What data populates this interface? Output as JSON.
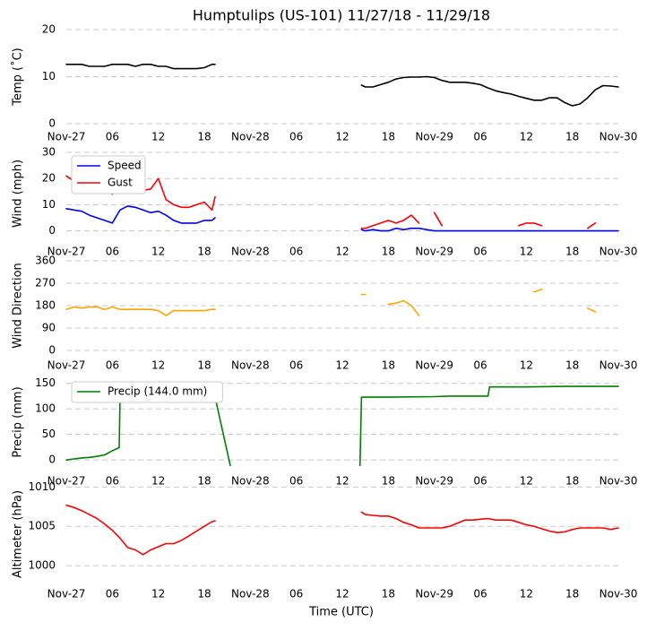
{
  "title": "Humptulips (US-101) 11/27/18 - 11/29/18",
  "xlabel": "Time (UTC)",
  "chart_data": [
    {
      "type": "line",
      "ylabel": "Temp (˚C)",
      "xlim": [
        0,
        72
      ],
      "xticks": [
        {
          "value": 0,
          "label": "Nov-27"
        },
        {
          "value": 6,
          "label": "06"
        },
        {
          "value": 12,
          "label": "12"
        },
        {
          "value": 18,
          "label": "18"
        },
        {
          "value": 24,
          "label": "Nov-28"
        },
        {
          "value": 30,
          "label": "06"
        },
        {
          "value": 36,
          "label": "12"
        },
        {
          "value": 42,
          "label": "18"
        },
        {
          "value": 48,
          "label": "Nov-29"
        },
        {
          "value": 54,
          "label": "06"
        },
        {
          "value": 60,
          "label": "12"
        },
        {
          "value": 66,
          "label": "18"
        },
        {
          "value": 72,
          "label": "Nov-30"
        }
      ],
      "ylim": [
        0,
        20
      ],
      "yticks": [
        0,
        10,
        20
      ],
      "grid": true,
      "x": [
        0,
        1,
        2,
        3,
        4,
        5,
        6,
        7,
        8,
        9,
        10,
        11,
        12,
        13,
        14,
        15,
        16,
        17,
        18,
        19,
        19.4,
        29,
        38.5,
        39,
        40,
        41,
        42,
        43,
        44,
        45,
        46,
        47,
        48,
        49,
        50,
        51,
        52,
        53,
        54,
        55,
        56,
        57,
        58,
        59,
        60,
        61,
        62,
        63,
        64,
        65,
        66,
        67,
        68,
        69,
        70,
        71,
        72
      ],
      "series": [
        {
          "color": "#000000",
          "values": [
            12.6,
            12.6,
            12.6,
            12.2,
            12.2,
            12.2,
            12.6,
            12.6,
            12.6,
            12.2,
            12.6,
            12.6,
            12.2,
            12.2,
            11.7,
            11.7,
            11.7,
            11.7,
            11.9,
            12.6,
            12.6,
            null,
            8.2,
            7.8,
            7.8,
            8.3,
            8.8,
            9.5,
            9.8,
            9.9,
            9.9,
            10,
            9.8,
            9.2,
            8.8,
            8.8,
            8.8,
            8.6,
            8.3,
            7.6,
            7,
            6.6,
            6.3,
            5.8,
            5.4,
            5,
            5,
            5.5,
            5.5,
            4.5,
            3.8,
            4.2,
            5.5,
            7.2,
            8.1,
            8,
            7.8
          ]
        }
      ]
    },
    {
      "type": "line",
      "ylabel": "Wind (mph)",
      "xlim": [
        0,
        72
      ],
      "xticks": [
        {
          "value": 0,
          "label": "Nov-27"
        },
        {
          "value": 6,
          "label": "06"
        },
        {
          "value": 12,
          "label": "12"
        },
        {
          "value": 18,
          "label": "18"
        },
        {
          "value": 24,
          "label": "Nov-28"
        },
        {
          "value": 30,
          "label": "06"
        },
        {
          "value": 36,
          "label": "12"
        },
        {
          "value": 42,
          "label": "18"
        },
        {
          "value": 48,
          "label": "Nov-29"
        },
        {
          "value": 54,
          "label": "06"
        },
        {
          "value": 60,
          "label": "12"
        },
        {
          "value": 66,
          "label": "18"
        },
        {
          "value": 72,
          "label": "Nov-30"
        }
      ],
      "ylim": [
        -1.5,
        30
      ],
      "yticks": [
        0,
        10,
        20,
        30
      ],
      "grid": true,
      "legend": "upper left",
      "x": [
        0,
        1,
        2,
        3,
        4,
        5,
        6,
        7,
        8,
        9,
        10,
        11,
        12,
        13,
        14,
        15,
        16,
        17,
        18,
        19,
        19.4,
        29,
        38.5,
        39,
        40,
        41,
        42,
        43,
        44,
        45,
        46,
        47,
        48,
        49,
        50,
        51,
        52,
        53,
        54,
        55,
        56,
        57,
        58,
        59,
        60,
        61,
        62,
        63,
        64,
        65,
        66,
        67,
        68,
        69,
        70,
        71,
        72
      ],
      "series": [
        {
          "name": "Speed",
          "color": "#0000ff",
          "values": [
            8.5,
            8,
            7.5,
            6,
            5,
            4,
            3,
            8,
            9.5,
            9,
            8,
            7,
            7.5,
            6,
            4,
            3,
            3,
            3,
            4,
            4,
            5,
            null,
            0.5,
            0,
            0.5,
            0,
            0,
            1,
            0.5,
            1,
            1,
            0.5,
            0,
            0,
            0,
            0,
            0,
            0,
            0,
            0,
            0,
            0,
            0,
            0,
            0,
            0,
            0,
            0,
            0,
            0,
            0,
            0,
            0,
            0,
            0,
            0,
            0
          ]
        },
        {
          "name": "Gust",
          "color": "#ff0000",
          "values": [
            21,
            19,
            16,
            22,
            15,
            18,
            14,
            24,
            18,
            16,
            15.5,
            16,
            20,
            12,
            10,
            9,
            9,
            10,
            11,
            8,
            13,
            null,
            1,
            1,
            2,
            3,
            4,
            3,
            4,
            6,
            3,
            null,
            7,
            2,
            null,
            null,
            null,
            null,
            null,
            null,
            null,
            null,
            null,
            2,
            3,
            3,
            2,
            null,
            null,
            null,
            null,
            null,
            1,
            3,
            null,
            null,
            null
          ]
        }
      ]
    },
    {
      "type": "line",
      "ylabel": "Wind Direction",
      "xlim": [
        0,
        72
      ],
      "xticks": [
        {
          "value": 0,
          "label": "Nov-27"
        },
        {
          "value": 6,
          "label": "06"
        },
        {
          "value": 12,
          "label": "12"
        },
        {
          "value": 18,
          "label": "18"
        },
        {
          "value": 24,
          "label": "Nov-28"
        },
        {
          "value": 30,
          "label": "06"
        },
        {
          "value": 36,
          "label": "12"
        },
        {
          "value": 42,
          "label": "18"
        },
        {
          "value": 48,
          "label": "Nov-29"
        },
        {
          "value": 54,
          "label": "06"
        },
        {
          "value": 60,
          "label": "12"
        },
        {
          "value": 66,
          "label": "18"
        },
        {
          "value": 72,
          "label": "Nov-30"
        }
      ],
      "ylim": [
        0,
        360
      ],
      "yticks": [
        0,
        90,
        180,
        270,
        360
      ],
      "grid": true,
      "x": [
        0,
        1,
        2,
        3,
        4,
        5,
        6,
        7,
        8,
        9,
        10,
        11,
        12,
        13,
        14,
        15,
        16,
        17,
        18,
        19,
        19.4,
        29,
        38.5,
        39,
        40,
        41,
        42,
        43,
        44,
        45,
        46,
        47,
        48,
        49,
        50,
        51,
        52,
        53,
        54,
        55,
        56,
        57,
        58,
        59,
        60,
        61,
        62,
        63,
        64,
        65,
        66,
        67,
        68,
        69,
        70,
        71,
        72
      ],
      "series": [
        {
          "color": "#ffa500",
          "values": [
            165,
            175,
            170,
            175,
            175,
            165,
            175,
            165,
            165,
            165,
            165,
            165,
            160,
            140,
            160,
            160,
            160,
            160,
            160,
            165,
            165,
            null,
            225,
            225,
            null,
            null,
            185,
            190,
            200,
            180,
            140,
            null,
            null,
            null,
            null,
            null,
            null,
            null,
            null,
            null,
            null,
            null,
            null,
            null,
            null,
            235,
            245,
            null,
            null,
            null,
            null,
            null,
            170,
            155,
            null,
            null,
            null
          ]
        }
      ]
    },
    {
      "type": "line",
      "ylabel": "Precip (mm)",
      "xlim": [
        0,
        72
      ],
      "xticks": [
        {
          "value": 0,
          "label": "Nov-27"
        },
        {
          "value": 6,
          "label": "06"
        },
        {
          "value": 12,
          "label": "12"
        },
        {
          "value": 18,
          "label": "18"
        },
        {
          "value": 24,
          "label": "Nov-28"
        },
        {
          "value": 30,
          "label": "06"
        },
        {
          "value": 36,
          "label": "12"
        },
        {
          "value": 42,
          "label": "18"
        },
        {
          "value": 48,
          "label": "Nov-29"
        },
        {
          "value": 54,
          "label": "06"
        },
        {
          "value": 60,
          "label": "12"
        },
        {
          "value": 66,
          "label": "18"
        },
        {
          "value": 72,
          "label": "Nov-30"
        }
      ],
      "ylim": [
        -12,
        160
      ],
      "yticks": [
        0,
        50,
        100,
        150
      ],
      "grid": true,
      "legend": "upper left",
      "x": [
        0,
        1,
        2,
        3,
        4,
        5,
        6,
        6.9,
        7,
        8,
        9,
        10,
        12,
        15,
        19.4,
        21.4,
        30,
        38.3,
        38.5,
        42,
        48,
        50,
        55,
        55.2,
        60,
        65,
        72
      ],
      "series": [
        {
          "name": "Precip (144.0 mm)",
          "color": "#008000",
          "values": [
            0,
            2,
            4,
            5,
            7,
            10,
            18,
            24,
            113,
            117,
            120,
            121,
            122,
            122,
            123,
            -12,
            null,
            -12,
            123,
            123,
            124,
            125,
            125,
            143,
            143,
            144,
            144
          ]
        }
      ]
    },
    {
      "type": "line",
      "ylabel": "Altimeter (hPa)",
      "xlim": [
        0,
        72
      ],
      "xticks": [
        {
          "value": 0,
          "label": "Nov-27"
        },
        {
          "value": 6,
          "label": "06"
        },
        {
          "value": 12,
          "label": "12"
        },
        {
          "value": 18,
          "label": "18"
        },
        {
          "value": 24,
          "label": "Nov-28"
        },
        {
          "value": 30,
          "label": "06"
        },
        {
          "value": 36,
          "label": "12"
        },
        {
          "value": 42,
          "label": "18"
        },
        {
          "value": 48,
          "label": "Nov-29"
        },
        {
          "value": 54,
          "label": "06"
        },
        {
          "value": 60,
          "label": "12"
        },
        {
          "value": 66,
          "label": "18"
        },
        {
          "value": 72,
          "label": "Nov-30"
        }
      ],
      "ylim": [
        997.5,
        1010.5
      ],
      "yticks": [
        1000,
        1005,
        1010
      ],
      "grid": true,
      "x": [
        0,
        1,
        2,
        3,
        4,
        5,
        6,
        7,
        8,
        9,
        10,
        11,
        12,
        13,
        14,
        15,
        16,
        17,
        18,
        19,
        19.4,
        29,
        38.5,
        39,
        40,
        41,
        42,
        43,
        44,
        45,
        46,
        47,
        48,
        49,
        50,
        51,
        52,
        53,
        54,
        55,
        56,
        57,
        58,
        59,
        60,
        61,
        62,
        63,
        64,
        65,
        66,
        67,
        68,
        69,
        70,
        71,
        72
      ],
      "series": [
        {
          "color": "#ff0000",
          "values": [
            1007.7,
            1007.4,
            1007,
            1006.5,
            1006,
            1005.3,
            1004.5,
            1003.5,
            1002.3,
            1002,
            1001.4,
            1002,
            1002.4,
            1002.8,
            1002.8,
            1003.2,
            1003.8,
            1004.4,
            1005,
            1005.6,
            1005.7,
            null,
            1006.8,
            1006.5,
            1006.4,
            1006.3,
            1006.3,
            1006,
            1005.5,
            1005.2,
            1004.8,
            1004.8,
            1004.8,
            1004.8,
            1005,
            1005.4,
            1005.8,
            1005.8,
            1005.9,
            1006,
            1005.8,
            1005.8,
            1005.8,
            1005.5,
            1005.2,
            1005,
            1004.7,
            1004.4,
            1004.2,
            1004.3,
            1004.6,
            1004.8,
            1004.8,
            1004.8,
            1004.8,
            1004.6,
            1004.8
          ]
        }
      ]
    }
  ]
}
